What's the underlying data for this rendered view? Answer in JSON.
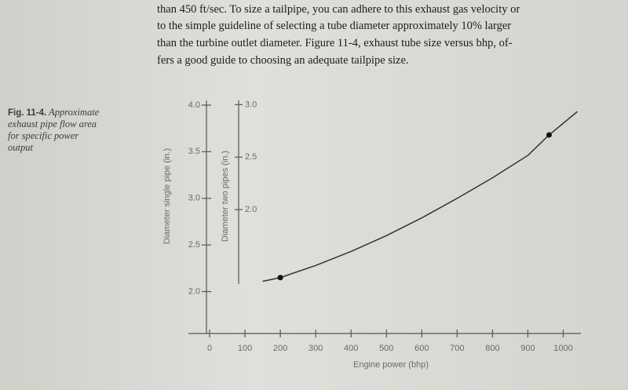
{
  "text": {
    "lines": [
      "than 450 ft/sec. To size a tailpipe, you can adhere to this exhaust gas velocity or",
      "to the simple guideline of selecting a tube diameter approximately 10% larger",
      "than the turbine outlet diameter. Figure 11-4, exhaust tube size versus bhp, of-",
      "fers a good guide to choosing an adequate tailpipe size."
    ]
  },
  "caption": {
    "label": "Fig. 11-4.",
    "lines": [
      "Approximate",
      "exhaust pipe flow area",
      "for specific power",
      "output"
    ]
  },
  "chart_data": {
    "type": "line",
    "x_label": "Engine power (bhp)",
    "y_label": "Diameter single pipe (in.)",
    "y2_label": "Diameter two pipes (in.)",
    "x": [
      150,
      200,
      300,
      400,
      500,
      600,
      700,
      800,
      900,
      960,
      1040
    ],
    "series": [
      {
        "color": "#333333",
        "values": [
          2.11,
          2.15,
          2.28,
          2.43,
          2.6,
          2.79,
          3.0,
          3.22,
          3.46,
          3.68,
          3.93
        ]
      }
    ],
    "markers": {
      "x": [
        200,
        960
      ],
      "values": [
        2.15,
        3.68
      ],
      "color": "#111111"
    },
    "xlim": [
      -60,
      1050
    ],
    "xticks": [
      0,
      100,
      200,
      300,
      400,
      500,
      600,
      700,
      800,
      900,
      1000
    ],
    "ylim": [
      1.55,
      4.05
    ],
    "yticks": [
      {
        "value": 2,
        "label": "2.0"
      },
      2.5,
      {
        "value": 3,
        "label": "3.0"
      },
      3.5,
      {
        "value": 4,
        "label": "4.0"
      }
    ],
    "y2lim": [
      0.82,
      3.04
    ],
    "y2ticks": [
      {
        "value": 2,
        "label": "2.0"
      },
      2.5,
      {
        "value": 3,
        "label": "3.0"
      }
    ]
  }
}
